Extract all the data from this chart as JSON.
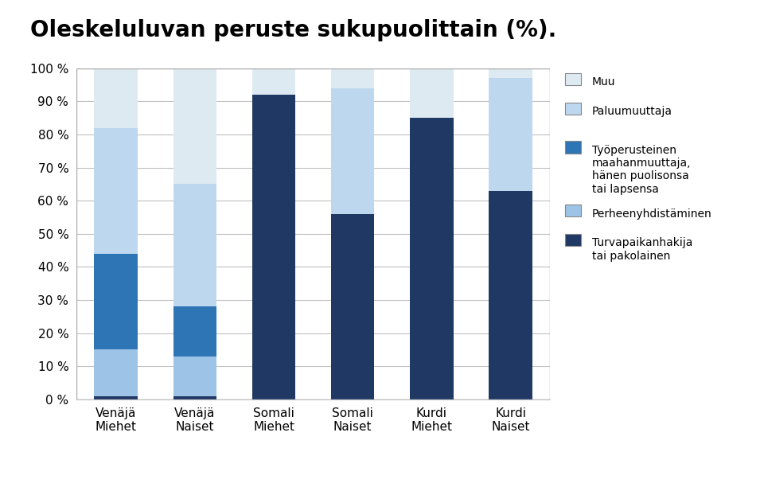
{
  "title": "Oleskeluluvan peruste sukupuolittain (%).",
  "categories": [
    "Venäjä\nMiehet",
    "Venäjä\nNaiset",
    "Somali\nMiehet",
    "Somali\nNaiset",
    "Kurdi\nMiehet",
    "Kurdi\nNaiset"
  ],
  "series": [
    {
      "name": "Turvapaikanhakija\ntai pakolainen",
      "values": [
        1,
        1,
        92,
        56,
        85,
        63
      ],
      "color": "#1F3864"
    },
    {
      "name": "Perheenyhdistäminen",
      "values": [
        14,
        12,
        0,
        0,
        0,
        0
      ],
      "color": "#9DC3E6"
    },
    {
      "name": "Työperusteinen\nmaahanmuuttaja,\nhänen puolisonsa\ntai lapsensa",
      "values": [
        29,
        15,
        0,
        0,
        0,
        0
      ],
      "color": "#2E75B6"
    },
    {
      "name": "Paluumuuttaja",
      "values": [
        38,
        37,
        0,
        38,
        0,
        34
      ],
      "color": "#BDD7EE"
    },
    {
      "name": "Muu",
      "values": [
        18,
        35,
        8,
        6,
        15,
        3
      ],
      "color": "#DEEAF1"
    }
  ],
  "ylim": [
    0,
    100
  ],
  "yticks": [
    0,
    10,
    20,
    30,
    40,
    50,
    60,
    70,
    80,
    90,
    100
  ],
  "ytick_labels": [
    "0 %",
    "10 %",
    "20 %",
    "30 %",
    "40 %",
    "50 %",
    "60 %",
    "70 %",
    "80 %",
    "90 %",
    "100 %"
  ],
  "background_color": "#FFFFFF",
  "plot_area_color": "#FFFFFF",
  "title_fontsize": 20,
  "tick_fontsize": 11,
  "legend_fontsize": 10,
  "bar_width": 0.55
}
